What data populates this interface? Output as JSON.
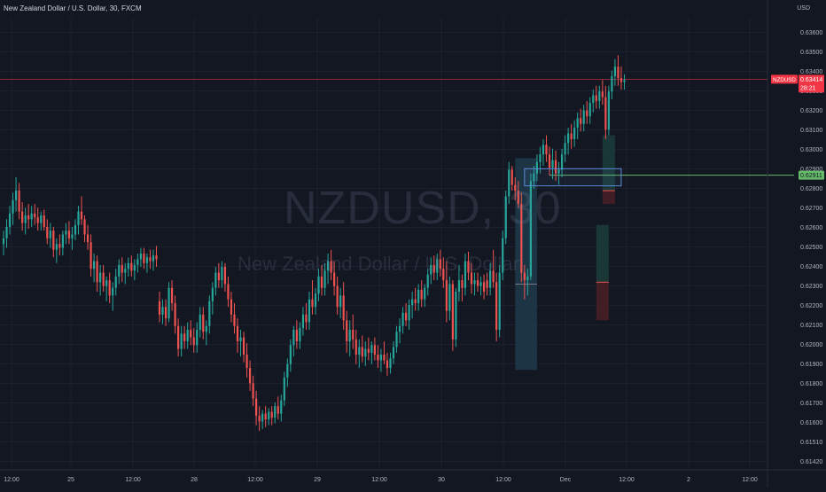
{
  "header": {
    "title": "New Zealand Dollar / U.S. Dollar, 30, FXCM",
    "currency": "USD"
  },
  "watermark": {
    "symbol": "NZDUSD, 30",
    "name": "New Zealand Dollar / U.S. Dollar"
  },
  "chart_data": {
    "type": "candlestick",
    "title": "New Zealand Dollar / U.S. Dollar, 30, FXCM",
    "currency": "USD",
    "ylim": [
      0.6141,
      0.6366
    ],
    "y_ticks": [
      "0.63600",
      "0.63500",
      "0.63400",
      "0.63300",
      "0.63200",
      "0.63100",
      "0.63000",
      "0.62900",
      "0.62800",
      "0.62700",
      "0.62600",
      "0.62500",
      "0.62400",
      "0.62300",
      "0.62200",
      "0.62100",
      "0.62000",
      "0.61900",
      "0.61800",
      "0.61700",
      "0.61600",
      "0.61510",
      "0.61420"
    ],
    "x_ticks": [
      "12:00",
      "25",
      "12:00",
      "28",
      "12:00",
      "29",
      "12:00",
      "30",
      "12:00",
      "Dec",
      "12:00",
      "2",
      "12:00"
    ],
    "current_price": {
      "symbol": "NZDUSD",
      "value": "0.63414",
      "countdown": "28:21",
      "color": "#f23645"
    },
    "marked_level": {
      "value": "0.62911",
      "color": "#66bb6a"
    },
    "rectangle": {
      "from_index": 167,
      "to_index": 198,
      "top": 0.62945,
      "bottom": 0.62855,
      "color": "#5b8bd6"
    },
    "positions": [
      {
        "from_index": 164,
        "to_index": 171,
        "top": 0.63,
        "entry": 0.6234,
        "bottom": 0.6189,
        "profit_color": "#1e3a4a",
        "loss_color": "#1e3a4a"
      },
      {
        "from_index": 192,
        "to_index": 196,
        "top": 0.6312,
        "entry": 0.6283,
        "bottom": 0.6276,
        "profit_color": "#1b3d3a",
        "loss_color": "#4a1f26"
      },
      {
        "from_index": 190,
        "to_index": 194,
        "top": 0.6265,
        "entry": 0.6235,
        "bottom": 0.6215,
        "profit_color": "#1b3d3a",
        "loss_color": "#4a1f26"
      }
    ],
    "colors": {
      "up": "#26a69a",
      "down": "#ef5350"
    },
    "candles_ohlc": [
      [
        0.6255,
        0.6262,
        0.6249,
        0.6258
      ],
      [
        0.6258,
        0.6268,
        0.6253,
        0.6264
      ],
      [
        0.6264,
        0.6275,
        0.626,
        0.6271
      ],
      [
        0.6271,
        0.6282,
        0.6265,
        0.6278
      ],
      [
        0.6278,
        0.629,
        0.6272,
        0.6283
      ],
      [
        0.6283,
        0.6287,
        0.6268,
        0.6272
      ],
      [
        0.6272,
        0.6277,
        0.6262,
        0.6266
      ],
      [
        0.6266,
        0.6274,
        0.626,
        0.627
      ],
      [
        0.627,
        0.6276,
        0.6263,
        0.6268
      ],
      [
        0.6268,
        0.6275,
        0.6264,
        0.6271
      ],
      [
        0.6271,
        0.6276,
        0.6265,
        0.6269
      ],
      [
        0.6269,
        0.6274,
        0.6262,
        0.6266
      ],
      [
        0.6266,
        0.6272,
        0.6262,
        0.627
      ],
      [
        0.627,
        0.6273,
        0.6262,
        0.6264
      ],
      [
        0.6264,
        0.6268,
        0.6255,
        0.6258
      ],
      [
        0.6258,
        0.6266,
        0.6253,
        0.6262
      ],
      [
        0.6262,
        0.6264,
        0.6248,
        0.6252
      ],
      [
        0.6252,
        0.6258,
        0.6245,
        0.6255
      ],
      [
        0.6255,
        0.626,
        0.6249,
        0.6253
      ],
      [
        0.6253,
        0.6262,
        0.6249,
        0.626
      ],
      [
        0.626,
        0.6266,
        0.6255,
        0.6262
      ],
      [
        0.6262,
        0.6267,
        0.6255,
        0.6258
      ],
      [
        0.6258,
        0.6264,
        0.6252,
        0.626
      ],
      [
        0.626,
        0.6268,
        0.6257,
        0.6265
      ],
      [
        0.6265,
        0.6275,
        0.626,
        0.6272
      ],
      [
        0.6272,
        0.628,
        0.6265,
        0.6268
      ],
      [
        0.6268,
        0.627,
        0.6256,
        0.626
      ],
      [
        0.626,
        0.6265,
        0.6252,
        0.6256
      ],
      [
        0.6256,
        0.626,
        0.6238,
        0.6242
      ],
      [
        0.6242,
        0.625,
        0.6235,
        0.6246
      ],
      [
        0.6246,
        0.6249,
        0.623,
        0.6235
      ],
      [
        0.6235,
        0.6244,
        0.6228,
        0.624
      ],
      [
        0.624,
        0.6244,
        0.623,
        0.6233
      ],
      [
        0.6233,
        0.6238,
        0.6225,
        0.6236
      ],
      [
        0.6236,
        0.624,
        0.6224,
        0.6228
      ],
      [
        0.6228,
        0.6235,
        0.622,
        0.6232
      ],
      [
        0.6232,
        0.6242,
        0.6228,
        0.6238
      ],
      [
        0.6238,
        0.6247,
        0.6234,
        0.6244
      ],
      [
        0.6244,
        0.6248,
        0.6235,
        0.624
      ],
      [
        0.624,
        0.6245,
        0.6234,
        0.6242
      ],
      [
        0.6242,
        0.6248,
        0.6238,
        0.6245
      ],
      [
        0.6245,
        0.6249,
        0.6238,
        0.6241
      ],
      [
        0.6241,
        0.6247,
        0.6236,
        0.6244
      ],
      [
        0.6244,
        0.625,
        0.624,
        0.6247
      ],
      [
        0.6247,
        0.6253,
        0.6243,
        0.625
      ],
      [
        0.625,
        0.6253,
        0.6242,
        0.6245
      ],
      [
        0.6245,
        0.625,
        0.624,
        0.6248
      ],
      [
        0.6248,
        0.6252,
        0.6242,
        0.6246
      ],
      [
        0.6246,
        0.6252,
        0.6241,
        0.6249
      ],
      [
        0.6249,
        0.6254,
        0.6243,
        0.6247
      ],
      [
        0.6225,
        0.623,
        0.6214,
        0.6218
      ],
      [
        0.6218,
        0.6226,
        0.6213,
        0.6222
      ],
      [
        0.6222,
        0.6226,
        0.6212,
        0.6216
      ],
      [
        0.6216,
        0.6235,
        0.6214,
        0.6232
      ],
      [
        0.6232,
        0.6236,
        0.622,
        0.6224
      ],
      [
        0.6224,
        0.6228,
        0.6208,
        0.6212
      ],
      [
        0.6212,
        0.6216,
        0.6196,
        0.62
      ],
      [
        0.62,
        0.6212,
        0.6196,
        0.6208
      ],
      [
        0.6208,
        0.6212,
        0.62,
        0.6204
      ],
      [
        0.6204,
        0.6214,
        0.62,
        0.621
      ],
      [
        0.621,
        0.6215,
        0.6202,
        0.6206
      ],
      [
        0.6206,
        0.6211,
        0.6198,
        0.6202
      ],
      [
        0.6202,
        0.6214,
        0.6198,
        0.621
      ],
      [
        0.621,
        0.6222,
        0.6206,
        0.6218
      ],
      [
        0.6218,
        0.6222,
        0.6205,
        0.6209
      ],
      [
        0.6209,
        0.6215,
        0.6202,
        0.6212
      ],
      [
        0.6212,
        0.6228,
        0.6208,
        0.6225
      ],
      [
        0.6225,
        0.6235,
        0.6218,
        0.6232
      ],
      [
        0.6232,
        0.6243,
        0.6228,
        0.624
      ],
      [
        0.624,
        0.6245,
        0.6232,
        0.6236
      ],
      [
        0.6236,
        0.6246,
        0.6232,
        0.6243
      ],
      [
        0.6243,
        0.6245,
        0.623,
        0.6234
      ],
      [
        0.6234,
        0.6238,
        0.6222,
        0.6226
      ],
      [
        0.6226,
        0.623,
        0.6214,
        0.6218
      ],
      [
        0.6218,
        0.6224,
        0.6208,
        0.6212
      ],
      [
        0.6212,
        0.6216,
        0.6198,
        0.6204
      ],
      [
        0.6204,
        0.621,
        0.6196,
        0.6206
      ],
      [
        0.6206,
        0.6209,
        0.6193,
        0.6197
      ],
      [
        0.6197,
        0.6203,
        0.6185,
        0.619
      ],
      [
        0.619,
        0.6194,
        0.6178,
        0.6182
      ],
      [
        0.6182,
        0.6186,
        0.617,
        0.6174
      ],
      [
        0.6174,
        0.6178,
        0.616,
        0.6165
      ],
      [
        0.6165,
        0.617,
        0.6157,
        0.6162
      ],
      [
        0.6162,
        0.6168,
        0.6158,
        0.6166
      ],
      [
        0.6166,
        0.617,
        0.6159,
        0.6163
      ],
      [
        0.6163,
        0.6169,
        0.616,
        0.6167
      ],
      [
        0.6167,
        0.617,
        0.616,
        0.6164
      ],
      [
        0.6164,
        0.6172,
        0.6161,
        0.617
      ],
      [
        0.617,
        0.6175,
        0.6163,
        0.6166
      ],
      [
        0.6166,
        0.6176,
        0.6162,
        0.6173
      ],
      [
        0.6173,
        0.6188,
        0.617,
        0.6185
      ],
      [
        0.6185,
        0.6195,
        0.618,
        0.6192
      ],
      [
        0.6192,
        0.6205,
        0.6188,
        0.6202
      ],
      [
        0.6202,
        0.6212,
        0.6196,
        0.621
      ],
      [
        0.621,
        0.6215,
        0.62,
        0.6204
      ],
      [
        0.6204,
        0.6214,
        0.62,
        0.6211
      ],
      [
        0.6211,
        0.6222,
        0.6207,
        0.6218
      ],
      [
        0.6218,
        0.6224,
        0.621,
        0.6214
      ],
      [
        0.6214,
        0.623,
        0.621,
        0.6226
      ],
      [
        0.6226,
        0.6236,
        0.6218,
        0.6222
      ],
      [
        0.6222,
        0.6232,
        0.6218,
        0.6229
      ],
      [
        0.6229,
        0.6242,
        0.6225,
        0.6238
      ],
      [
        0.6238,
        0.6244,
        0.6228,
        0.6232
      ],
      [
        0.6232,
        0.6245,
        0.6228,
        0.6241
      ],
      [
        0.6241,
        0.625,
        0.6234,
        0.6246
      ],
      [
        0.6246,
        0.6252,
        0.6236,
        0.624
      ],
      [
        0.624,
        0.6246,
        0.6228,
        0.6233
      ],
      [
        0.6233,
        0.6238,
        0.6218,
        0.6222
      ],
      [
        0.6222,
        0.6232,
        0.6216,
        0.6228
      ],
      [
        0.6228,
        0.6235,
        0.621,
        0.6215
      ],
      [
        0.6215,
        0.622,
        0.6198,
        0.6204
      ],
      [
        0.6204,
        0.6215,
        0.6196,
        0.621
      ],
      [
        0.621,
        0.6218,
        0.62,
        0.6205
      ],
      [
        0.6205,
        0.621,
        0.6192,
        0.6197
      ],
      [
        0.6197,
        0.6205,
        0.619,
        0.6201
      ],
      [
        0.6201,
        0.6207,
        0.6193,
        0.6196
      ],
      [
        0.6196,
        0.6204,
        0.6191,
        0.62
      ],
      [
        0.62,
        0.6206,
        0.6194,
        0.6198
      ],
      [
        0.6198,
        0.6204,
        0.6192,
        0.6202
      ],
      [
        0.6202,
        0.6206,
        0.6194,
        0.6197
      ],
      [
        0.6197,
        0.6202,
        0.619,
        0.6194
      ],
      [
        0.6194,
        0.62,
        0.6188,
        0.6197
      ],
      [
        0.6197,
        0.6204,
        0.6192,
        0.6194
      ],
      [
        0.6194,
        0.6198,
        0.6186,
        0.619
      ],
      [
        0.619,
        0.6198,
        0.6187,
        0.6195
      ],
      [
        0.6195,
        0.6204,
        0.6192,
        0.6201
      ],
      [
        0.6201,
        0.6212,
        0.6198,
        0.6209
      ],
      [
        0.6209,
        0.6216,
        0.6203,
        0.6212
      ],
      [
        0.6212,
        0.6222,
        0.6208,
        0.6219
      ],
      [
        0.6219,
        0.6224,
        0.6212,
        0.6215
      ],
      [
        0.6215,
        0.6226,
        0.621,
        0.6223
      ],
      [
        0.6223,
        0.623,
        0.6216,
        0.6226
      ],
      [
        0.6226,
        0.6232,
        0.622,
        0.6224
      ],
      [
        0.6224,
        0.6234,
        0.622,
        0.6231
      ],
      [
        0.6231,
        0.6236,
        0.6222,
        0.6226
      ],
      [
        0.6226,
        0.6234,
        0.6222,
        0.6232
      ],
      [
        0.6232,
        0.6242,
        0.6228,
        0.6239
      ],
      [
        0.6239,
        0.6248,
        0.6234,
        0.6244
      ],
      [
        0.6244,
        0.6249,
        0.6236,
        0.624
      ],
      [
        0.624,
        0.625,
        0.6236,
        0.6247
      ],
      [
        0.6247,
        0.6252,
        0.6238,
        0.6242
      ],
      [
        0.6242,
        0.6248,
        0.6232,
        0.6236
      ],
      [
        0.6236,
        0.6246,
        0.6214,
        0.622
      ],
      [
        0.622,
        0.6238,
        0.6215,
        0.6234
      ],
      [
        0.6234,
        0.6236,
        0.6199,
        0.6205
      ],
      [
        0.6205,
        0.6232,
        0.6201,
        0.623
      ],
      [
        0.623,
        0.6244,
        0.6225,
        0.6236
      ],
      [
        0.6236,
        0.6239,
        0.6225,
        0.6232
      ],
      [
        0.6232,
        0.625,
        0.6228,
        0.6246
      ],
      [
        0.6246,
        0.6251,
        0.6236,
        0.624
      ],
      [
        0.624,
        0.6245,
        0.6229,
        0.6234
      ],
      [
        0.6234,
        0.624,
        0.6228,
        0.6236
      ],
      [
        0.6236,
        0.624,
        0.623,
        0.6233
      ],
      [
        0.6233,
        0.6238,
        0.6228,
        0.6235
      ],
      [
        0.6235,
        0.6239,
        0.6226,
        0.623
      ],
      [
        0.6236,
        0.624,
        0.6228,
        0.6232
      ],
      [
        0.6232,
        0.6245,
        0.6228,
        0.6241
      ],
      [
        0.6241,
        0.6252,
        0.6232,
        0.6235
      ],
      [
        0.6235,
        0.624,
        0.6204,
        0.621
      ],
      [
        0.621,
        0.6244,
        0.6206,
        0.624
      ],
      [
        0.624,
        0.6262,
        0.6236,
        0.6258
      ],
      [
        0.6258,
        0.6283,
        0.6255,
        0.628
      ],
      [
        0.628,
        0.6298,
        0.6276,
        0.6294
      ],
      [
        0.6294,
        0.6296,
        0.6283,
        0.6286
      ],
      [
        0.6286,
        0.629,
        0.6278,
        0.6283
      ],
      [
        0.6283,
        0.6288,
        0.6274,
        0.6276
      ],
      [
        0.6276,
        0.6282,
        0.6235,
        0.624
      ],
      [
        0.624,
        0.6244,
        0.6226,
        0.6236
      ],
      [
        0.6236,
        0.6242,
        0.6228,
        0.6238
      ],
      [
        0.6238,
        0.6292,
        0.6236,
        0.6288
      ],
      [
        0.6288,
        0.6296,
        0.6284,
        0.6292
      ],
      [
        0.6292,
        0.6302,
        0.6288,
        0.6298
      ],
      [
        0.6298,
        0.6306,
        0.6292,
        0.6302
      ],
      [
        0.6302,
        0.631,
        0.6296,
        0.6307
      ],
      [
        0.6307,
        0.6312,
        0.6298,
        0.6302
      ],
      [
        0.6302,
        0.6306,
        0.6291,
        0.6295
      ],
      [
        0.6295,
        0.6305,
        0.6289,
        0.6299
      ],
      [
        0.6299,
        0.6304,
        0.6288,
        0.6292
      ],
      [
        0.6292,
        0.6298,
        0.6286,
        0.6294
      ],
      [
        0.6294,
        0.6305,
        0.629,
        0.6302
      ],
      [
        0.6302,
        0.6312,
        0.6298,
        0.6308
      ],
      [
        0.6308,
        0.6316,
        0.6302,
        0.6313
      ],
      [
        0.6313,
        0.6318,
        0.6305,
        0.631
      ],
      [
        0.631,
        0.632,
        0.6306,
        0.6316
      ],
      [
        0.6316,
        0.6324,
        0.631,
        0.6321
      ],
      [
        0.6321,
        0.6326,
        0.6314,
        0.6318
      ],
      [
        0.6318,
        0.6328,
        0.6314,
        0.6325
      ],
      [
        0.6325,
        0.633,
        0.6318,
        0.6322
      ],
      [
        0.6322,
        0.6332,
        0.6318,
        0.6329
      ],
      [
        0.6329,
        0.6336,
        0.6324,
        0.6333
      ],
      [
        0.6333,
        0.6338,
        0.6326,
        0.633
      ],
      [
        0.633,
        0.6338,
        0.6326,
        0.6335
      ],
      [
        0.6335,
        0.6341,
        0.6328,
        0.6332
      ],
      [
        0.6332,
        0.6338,
        0.631,
        0.6315
      ],
      [
        0.6315,
        0.6338,
        0.6312,
        0.6335
      ],
      [
        0.6335,
        0.6346,
        0.6331,
        0.6343
      ],
      [
        0.6343,
        0.6352,
        0.6338,
        0.6348
      ],
      [
        0.6348,
        0.6354,
        0.6338,
        0.6342
      ],
      [
        0.6342,
        0.6348,
        0.6336,
        0.634
      ],
      [
        0.634,
        0.6344,
        0.6336,
        0.6341
      ]
    ]
  }
}
